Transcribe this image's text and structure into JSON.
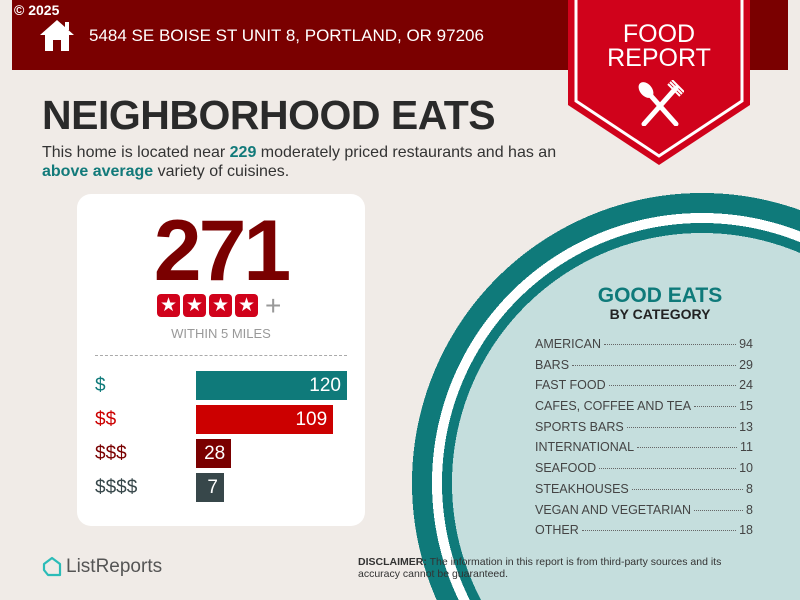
{
  "copyright": "© 2025",
  "address": "5484 SE BOISE ST UNIT 8, PORTLAND, OR 97206",
  "badge": {
    "line1": "FOOD",
    "line2": "REPORT",
    "icon": "fork-spoon-icon"
  },
  "title": "NEIGHBORHOOD EATS",
  "description": {
    "pre": "This home is located near ",
    "count": "229",
    "mid": " moderately priced restaurants and has an ",
    "variety": "above average",
    "post": " variety of cuisines."
  },
  "summary": {
    "total": "271",
    "rating_stars": 4,
    "rating_suffix": "+",
    "within": "WITHIN 5 MILES"
  },
  "price_levels": [
    {
      "label": "$",
      "value": 120,
      "color": "#0f7a7a",
      "label_color": "#0f7a7a"
    },
    {
      "label": "$$",
      "value": 109,
      "color": "#cc0000",
      "label_color": "#cc0000"
    },
    {
      "label": "$$$",
      "value": 28,
      "color": "#7a0000",
      "label_color": "#7a0000"
    },
    {
      "label": "$$$$",
      "value": 7,
      "color": "#37474a",
      "label_color": "#37474a"
    }
  ],
  "categories_title": "GOOD EATS",
  "categories_subtitle": "BY CATEGORY",
  "categories": [
    {
      "name": "AMERICAN",
      "count": "94"
    },
    {
      "name": "BARS",
      "count": "29"
    },
    {
      "name": "FAST FOOD",
      "count": "24"
    },
    {
      "name": "CAFES, COFFEE AND TEA",
      "count": "15"
    },
    {
      "name": "SPORTS BARS",
      "count": "13"
    },
    {
      "name": "INTERNATIONAL",
      "count": "11"
    },
    {
      "name": "SEAFOOD",
      "count": "10"
    },
    {
      "name": "STEAKHOUSES",
      "count": "8"
    },
    {
      "name": "VEGAN AND VEGETARIAN",
      "count": "8"
    },
    {
      "name": "OTHER",
      "count": "18"
    }
  ],
  "logo": "ListReports",
  "disclaimer": {
    "label": "DISCLAIMER:",
    "text": " The information in this report is from third-party sources and its accuracy cannot be guaranteed."
  }
}
